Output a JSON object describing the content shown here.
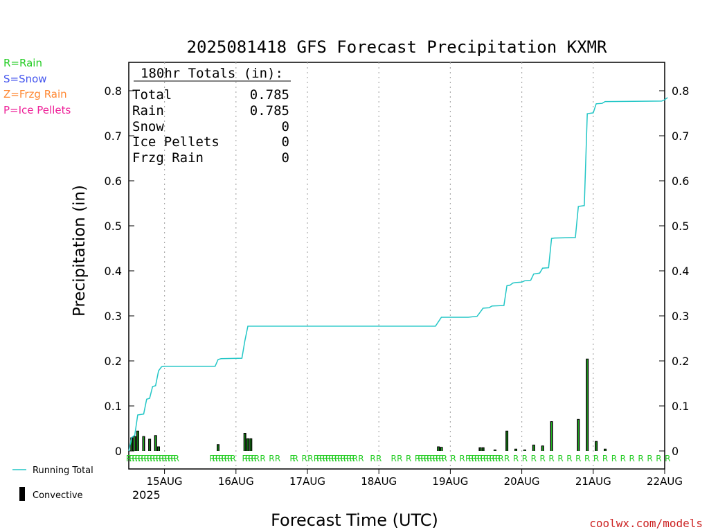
{
  "chart_data": {
    "type": "line",
    "title": "2025081418 GFS Forecast Precipitation KXMR",
    "xlabel": "Forecast Time (UTC)",
    "ylabel": "Precipitation (in)",
    "ylim": [
      0,
      0.87
    ],
    "y_ticks": [
      0,
      0.1,
      0.2,
      0.3,
      0.4,
      0.5,
      0.6,
      0.7,
      0.8
    ],
    "y_tick_labels": [
      "0",
      "0.1",
      "0.2",
      "0.3",
      "0.4",
      "0.5",
      "0.6",
      "0.7",
      "0.8"
    ],
    "x_range_hours": [
      -6,
      174
    ],
    "x_ticks_hours": [
      6,
      30,
      54,
      78,
      102,
      126,
      150,
      174
    ],
    "x_tick_labels": [
      "15AUG",
      "16AUG",
      "17AUG",
      "18AUG",
      "19AUG",
      "20AUG",
      "21AUG",
      "22AUG"
    ],
    "x_year_label": "2025",
    "grid": "vertical dotted",
    "legend_placement": "bottom-left",
    "type_key": [
      {
        "text": "R=Rain",
        "color": "#22cc22"
      },
      {
        "text": "S=Snow",
        "color": "#4455ee"
      },
      {
        "text": "Z=Frzg Rain",
        "color": "#ff8833"
      },
      {
        "text": "P=Ice Pellets",
        "color": "#ee2299"
      }
    ],
    "totals_box": {
      "header": "180hr Totals (in):",
      "rows": [
        {
          "label": "Total",
          "value": "0.785"
        },
        {
          "label": "Rain",
          "value": "0.785"
        },
        {
          "label": "Snow",
          "value": "0"
        },
        {
          "label": "Ice Pellets",
          "value": "0"
        },
        {
          "label": "Frzg Rain",
          "value": "0"
        }
      ]
    },
    "legend": [
      {
        "name": "Running Total",
        "color": "#22c6c6"
      },
      {
        "name": "Convective",
        "color": "#000000"
      }
    ],
    "running_total": [
      [
        -6,
        0.0
      ],
      [
        -5,
        0.03
      ],
      [
        -4,
        0.035
      ],
      [
        -3,
        0.08
      ],
      [
        -1,
        0.082
      ],
      [
        0,
        0.115
      ],
      [
        1,
        0.117
      ],
      [
        2,
        0.143
      ],
      [
        3,
        0.145
      ],
      [
        4,
        0.178
      ],
      [
        5,
        0.187
      ],
      [
        6,
        0.188
      ],
      [
        23,
        0.188
      ],
      [
        24,
        0.203
      ],
      [
        25,
        0.205
      ],
      [
        32,
        0.206
      ],
      [
        33,
        0.245
      ],
      [
        34,
        0.277
      ],
      [
        97,
        0.277
      ],
      [
        99,
        0.297
      ],
      [
        108,
        0.297
      ],
      [
        111,
        0.299
      ],
      [
        112,
        0.308
      ],
      [
        113,
        0.317
      ],
      [
        115,
        0.318
      ],
      [
        116,
        0.322
      ],
      [
        120,
        0.323
      ],
      [
        121,
        0.367
      ],
      [
        122,
        0.368
      ],
      [
        123,
        0.373
      ],
      [
        124,
        0.374
      ],
      [
        126,
        0.375
      ],
      [
        127,
        0.378
      ],
      [
        129,
        0.379
      ],
      [
        130,
        0.393
      ],
      [
        132,
        0.395
      ],
      [
        133,
        0.406
      ],
      [
        135,
        0.407
      ],
      [
        136,
        0.472
      ],
      [
        137,
        0.473
      ],
      [
        144,
        0.474
      ],
      [
        145,
        0.543
      ],
      [
        147,
        0.545
      ],
      [
        148,
        0.749
      ],
      [
        150,
        0.751
      ],
      [
        151,
        0.771
      ],
      [
        153,
        0.772
      ],
      [
        154,
        0.776
      ],
      [
        173,
        0.777
      ],
      [
        174,
        0.78
      ],
      [
        175,
        0.785
      ]
    ],
    "convective_bars": [
      [
        -5,
        0.03
      ],
      [
        -4,
        0.033
      ],
      [
        -3,
        0.045
      ],
      [
        -1,
        0.033
      ],
      [
        1,
        0.027
      ],
      [
        3,
        0.035
      ],
      [
        4,
        0.01
      ],
      [
        24,
        0.015
      ],
      [
        33,
        0.04
      ],
      [
        34,
        0.028
      ],
      [
        35,
        0.028
      ],
      [
        98,
        0.01
      ],
      [
        99,
        0.009
      ],
      [
        112,
        0.008
      ],
      [
        113,
        0.008
      ],
      [
        117,
        0.003
      ],
      [
        121,
        0.045
      ],
      [
        124,
        0.005
      ],
      [
        127,
        0.003
      ],
      [
        130,
        0.014
      ],
      [
        133,
        0.012
      ],
      [
        136,
        0.066
      ],
      [
        145,
        0.071
      ],
      [
        148,
        0.205
      ],
      [
        151,
        0.022
      ],
      [
        154,
        0.005
      ]
    ],
    "ptype_markers": {
      "letter": "R",
      "hours": [
        -6,
        -5,
        -4,
        -3,
        -2,
        -1,
        0,
        1,
        2,
        3,
        4,
        5,
        6,
        7,
        8,
        9,
        10,
        22,
        23,
        24,
        25,
        26,
        27,
        28,
        29,
        33,
        34,
        35,
        36,
        37,
        39,
        42,
        44,
        49,
        50,
        53,
        55,
        57,
        58,
        59,
        60,
        61,
        62,
        63,
        64,
        65,
        66,
        67,
        68,
        69,
        70,
        72,
        76,
        78,
        83,
        85,
        88,
        91,
        92,
        93,
        94,
        95,
        96,
        97,
        98,
        99,
        100,
        103,
        106,
        108,
        109,
        110,
        111,
        112,
        113,
        114,
        115,
        116,
        117,
        118,
        119,
        121,
        124,
        127,
        130,
        133,
        136,
        139,
        142,
        145,
        148,
        151,
        154,
        157,
        160,
        163,
        166,
        169,
        172,
        175
      ]
    }
  },
  "footer": {
    "legend_running_total": "Running Total",
    "legend_convective": "Convective",
    "watermark": "coolwx.com/models"
  }
}
